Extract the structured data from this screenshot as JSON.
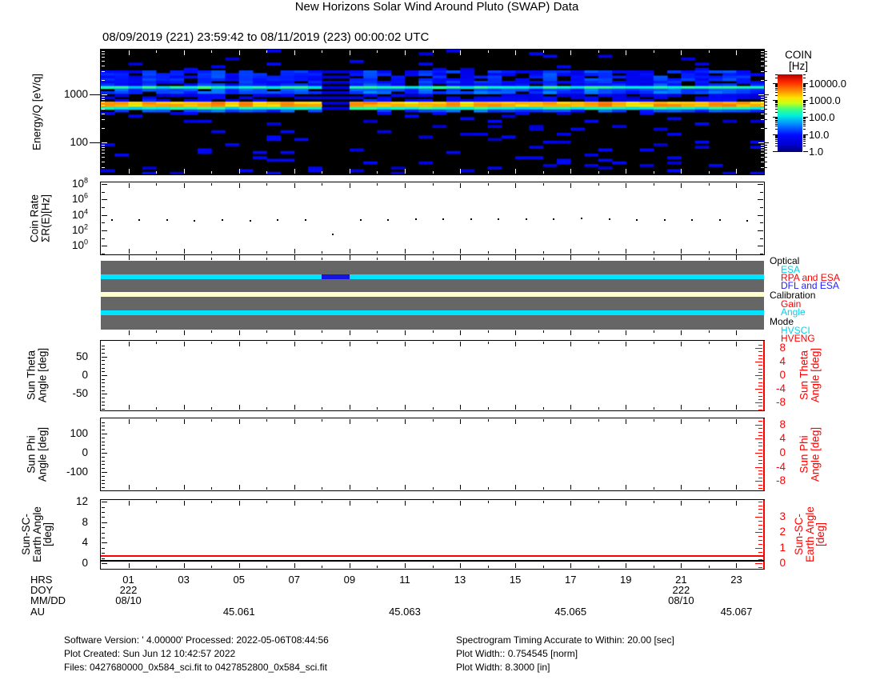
{
  "header": {
    "title": "New Horizons Solar Wind Around Pluto (SWAP) Data",
    "subtitle": "08/09/2019 (221) 23:59:42 to 08/11/2019 (223) 00:00:02 UTC"
  },
  "chart_data": {
    "type": "multi-panel-timeseries",
    "x_axis": {
      "units": "hours UTC of DOY 222",
      "range_hours": [
        0,
        24
      ],
      "major_tick_hours": [
        1,
        3,
        5,
        7,
        9,
        11,
        13,
        15,
        17,
        19,
        21,
        23
      ]
    },
    "panels": [
      {
        "name": "spectrogram",
        "type": "heatmap",
        "ylabel": "Energy/Q [eV/q]",
        "yticks": [
          {
            "value": 1000,
            "label": "1000"
          },
          {
            "value": 100,
            "label": "100"
          }
        ],
        "y_log_range_ev_q": [
          21.5,
          8600
        ],
        "colorbar": {
          "title": "COIN",
          "units": "[Hz]",
          "ticks": [
            {
              "exp": 4,
              "label": "10000.0"
            },
            {
              "exp": 3,
              "label": "1000.0"
            },
            {
              "exp": 2,
              "label": "100.0"
            },
            {
              "exp": 1,
              "label": "10.0"
            },
            {
              "exp": 0,
              "label": "1.0"
            }
          ],
          "log_range_hz": [
            0.8,
            30000
          ]
        },
        "data_gap_hours": [
          8.0,
          9.0
        ],
        "bands": [
          {
            "energy_ev_q": [
              3300,
              8600
            ],
            "flux_hz": 0,
            "black_frac": 0,
            "scatter_prob": 0.05
          },
          {
            "energy_ev_q": [
              1500,
              3300
            ],
            "flux_hz": 9,
            "black_frac": 0.22,
            "scatter_prob": 0
          },
          {
            "energy_ev_q": [
              1280,
              1500
            ],
            "flux_hz": 130,
            "black_frac": 0,
            "scatter_prob": 0
          },
          {
            "energy_ev_q": [
              1020,
              1280
            ],
            "flux_hz": 16,
            "black_frac": 0.1,
            "scatter_prob": 0
          },
          {
            "energy_ev_q": [
              820,
              1020
            ],
            "flux_hz": 4,
            "black_frac": 0.45,
            "scatter_prob": 0
          },
          {
            "energy_ev_q": [
              700,
              820
            ],
            "flux_hz": 6,
            "black_frac": 0.3,
            "scatter_prob": 0
          },
          {
            "energy_ev_q": [
              580,
              700
            ],
            "flux_hz": 2000,
            "black_frac": 0,
            "scatter_prob": 0
          },
          {
            "energy_ev_q": [
              520,
              580
            ],
            "flux_hz": 4500,
            "black_frac": 0,
            "scatter_prob": 0
          },
          {
            "energy_ev_q": [
              470,
              520
            ],
            "flux_hz": 150,
            "black_frac": 0,
            "scatter_prob": 0
          },
          {
            "energy_ev_q": [
              420,
              470
            ],
            "flux_hz": 15,
            "black_frac": 0.2,
            "scatter_prob": 0
          },
          {
            "energy_ev_q": [
              300,
              420
            ],
            "flux_hz": 0,
            "black_frac": 0,
            "scatter_prob": 0.14
          },
          {
            "energy_ev_q": [
              21.5,
              300
            ],
            "flux_hz": 0,
            "black_frac": 0,
            "scatter_prob": 0.08
          }
        ]
      },
      {
        "name": "coin_rate",
        "type": "scatter",
        "ylabel_lines": [
          "Coin Rate",
          "ΣR(E)[Hz]"
        ],
        "ytick_exponents": [
          8,
          6,
          4,
          2,
          0
        ],
        "y_log_range_hz": [
          0.1,
          160000000
        ],
        "points": {
          "hours": [
            0.4,
            1.4,
            2.4,
            3.4,
            4.4,
            5.4,
            6.4,
            7.4,
            8.4,
            9.4,
            10.4,
            11.4,
            12.4,
            13.4,
            14.4,
            15.4,
            16.4,
            17.4,
            18.4,
            19.4,
            20.4,
            21.4,
            22.4,
            23.4
          ],
          "rate_hz": [
            2000,
            2000,
            1950,
            1900,
            2000,
            1750,
            2200,
            2300,
            30,
            2200,
            2300,
            2500,
            2500,
            2600,
            2700,
            2900,
            3100,
            3200,
            2800,
            2300,
            2400,
            2200,
            2000,
            1700
          ]
        }
      },
      {
        "name": "status",
        "type": "state-bars",
        "legend": [
          {
            "header": "Optical",
            "states": [
              {
                "label": "ESA",
                "color": "#00d2ee"
              },
              {
                "label": "RPA and ESA",
                "color": "#ff0000"
              },
              {
                "label": "DFL and ESA",
                "color": "#2222ff"
              }
            ]
          },
          {
            "header": "Calibration",
            "states": [
              {
                "label": "Gain",
                "color": "#ff0000"
              },
              {
                "label": "Angle",
                "color": "#00d2ee"
              }
            ]
          },
          {
            "header": "Mode",
            "states": [
              {
                "label": "HVSCI",
                "color": "#00d2ee"
              },
              {
                "label": "HVENG",
                "color": "#ff0000"
              }
            ]
          }
        ],
        "rows": [
          {
            "name": "optical",
            "segments": [
              {
                "start_hr": 0,
                "end_hr": 8.0,
                "state": "ESA",
                "color": "#00e4ff"
              },
              {
                "start_hr": 8.0,
                "end_hr": 9.0,
                "state": "DFL and ESA",
                "color": "#1414e0"
              },
              {
                "start_hr": 9.0,
                "end_hr": 24,
                "state": "ESA",
                "color": "#00e4ff"
              }
            ]
          },
          {
            "name": "calibration",
            "segments": [
              {
                "start_hr": 0,
                "end_hr": 24,
                "state": "none",
                "color": "#ffffcf"
              }
            ]
          },
          {
            "name": "mode",
            "segments": [
              {
                "start_hr": 0,
                "end_hr": 24,
                "state": "HVSCI",
                "color": "#00e4ff"
              }
            ]
          }
        ]
      },
      {
        "name": "sun_theta",
        "type": "line",
        "left_axis": {
          "label_lines": [
            "Sun Theta",
            "Angle [deg]"
          ],
          "ticks": [
            50,
            0,
            -50
          ],
          "range": [
            -93,
            87
          ],
          "color": "#000000"
        },
        "right_axis": {
          "label_lines": [
            "Sun Theta",
            "Angle [deg]"
          ],
          "ticks": [
            8,
            4,
            0,
            -4,
            -8
          ],
          "range": [
            -10.4,
            10.1
          ],
          "color": "#ff0000"
        },
        "series": []
      },
      {
        "name": "sun_phi",
        "type": "line",
        "left_axis": {
          "label_lines": [
            "Sun Phi",
            "Angle [deg]"
          ],
          "ticks": [
            100,
            0,
            -100
          ],
          "range": [
            -190,
            178
          ],
          "color": "#000000"
        },
        "right_axis": {
          "label_lines": [
            "Sun Phi",
            "Angle [deg]"
          ],
          "ticks": [
            8,
            4,
            0,
            -4,
            -8
          ],
          "range": [
            -10.7,
            9.8
          ],
          "color": "#ff0000"
        },
        "series": []
      },
      {
        "name": "sun_sc_earth",
        "type": "line",
        "left_axis": {
          "label_lines": [
            "Sun-SC-",
            "Earth Angle",
            "[deg]"
          ],
          "ticks": [
            12,
            8,
            4,
            0
          ],
          "range": [
            -1.1,
            12.3
          ],
          "color": "#000000"
        },
        "right_axis": {
          "label_lines": [
            "Sun-SC-",
            "Earth Angle",
            "[deg]"
          ],
          "ticks": [
            3,
            2,
            1,
            0
          ],
          "range": [
            -0.36,
            4.1
          ],
          "color": "#ff0000"
        },
        "lines": [
          {
            "axis": "left",
            "color": "#000000",
            "value_deg": 0.55
          },
          {
            "axis": "right",
            "color": "#ff0000",
            "value_deg": 0.53
          }
        ]
      }
    ]
  },
  "time_axis": {
    "row_labels": [
      "HRS",
      "DOY",
      "MM/DD",
      "AU"
    ],
    "hrs": [
      {
        "hour": 1,
        "label": "01"
      },
      {
        "hour": 3,
        "label": "03"
      },
      {
        "hour": 5,
        "label": "05"
      },
      {
        "hour": 7,
        "label": "07"
      },
      {
        "hour": 9,
        "label": "09"
      },
      {
        "hour": 11,
        "label": "11"
      },
      {
        "hour": 13,
        "label": "13"
      },
      {
        "hour": 15,
        "label": "15"
      },
      {
        "hour": 17,
        "label": "17"
      },
      {
        "hour": 19,
        "label": "19"
      },
      {
        "hour": 21,
        "label": "21"
      },
      {
        "hour": 23,
        "label": "23"
      }
    ],
    "doy": [
      {
        "hour": 1,
        "label": "222"
      },
      {
        "hour": 21,
        "label": "222"
      }
    ],
    "mmdd": [
      {
        "hour": 1,
        "label": "08/10"
      },
      {
        "hour": 21,
        "label": "08/10"
      }
    ],
    "au": [
      {
        "hour": 5,
        "label": "45.061"
      },
      {
        "hour": 11,
        "label": "45.063"
      },
      {
        "hour": 17,
        "label": "45.065"
      },
      {
        "hour": 23,
        "label": "45.067"
      }
    ]
  },
  "footer": {
    "left": [
      "Software Version:  ' 4.00000'  Processed: 2022-05-06T08:44:56",
      "Plot Created: Sun Jun 12 10:42:57 2022",
      "Files: 0427680000_0x584_sci.fit to 0427852800_0x584_sci.fit"
    ],
    "right": [
      "Spectrogram Timing Accurate to Within: 20.00 [sec]",
      "Plot Width:: 0.754545 [norm]",
      "Plot Width: 8.3000 [in]"
    ]
  },
  "colors": {
    "axis_red": "#ff0000",
    "state_cyan": "#00e4ff",
    "state_blue": "#1414e0",
    "state_cream": "#ffffcf",
    "status_gray": "#666666"
  }
}
